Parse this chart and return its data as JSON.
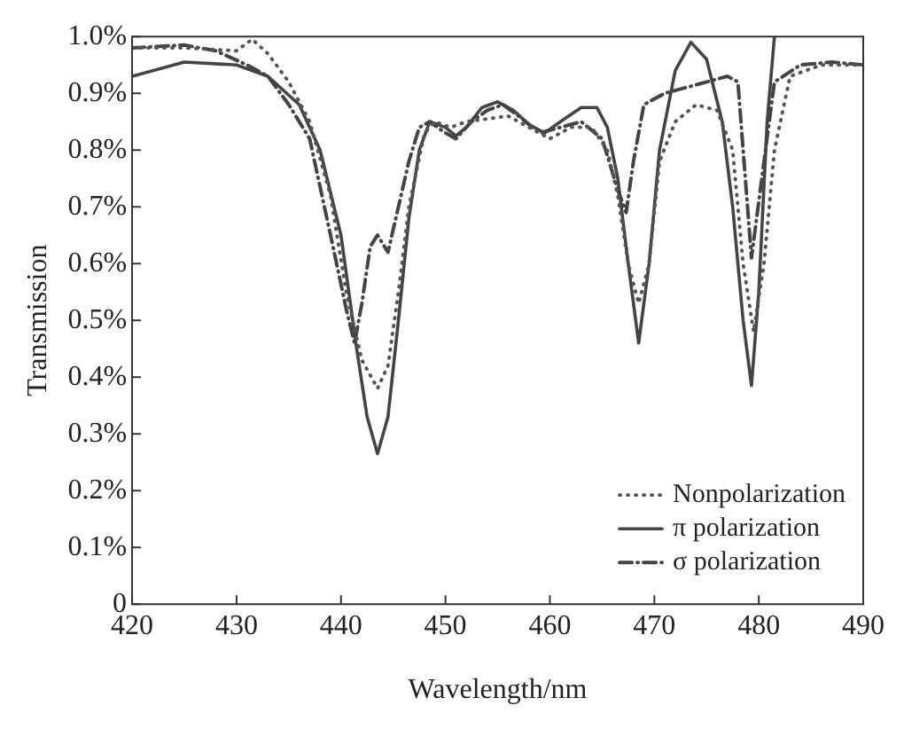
{
  "chart_data": {
    "type": "line",
    "xlabel": "Wavelength/nm",
    "ylabel": "Transmission",
    "xlim": [
      420,
      490
    ],
    "xticks": [
      420,
      430,
      440,
      450,
      460,
      470,
      480,
      490
    ],
    "ylim": [
      0,
      1.0
    ],
    "yticks": [
      {
        "value": 0,
        "label": "0"
      },
      {
        "value": 0.1,
        "label": "0.1%"
      },
      {
        "value": 0.2,
        "label": "0.2%"
      },
      {
        "value": 0.3,
        "label": "0.3%"
      },
      {
        "value": 0.4,
        "label": "0.4%"
      },
      {
        "value": 0.5,
        "label": "0.5%"
      },
      {
        "value": 0.6,
        "label": "0.6%"
      },
      {
        "value": 0.7,
        "label": "0.7%"
      },
      {
        "value": 0.8,
        "label": "0.8%"
      },
      {
        "value": 0.9,
        "label": "0.9%"
      },
      {
        "value": 1.0,
        "label": "1.0%"
      }
    ],
    "grid": false,
    "legend": "bottom right",
    "marker": "none",
    "series": [
      {
        "name": "Nonpolarization",
        "color": "#555555",
        "line_style": "dotted",
        "x": [
          420,
          425,
          430,
          431.5,
          433,
          435,
          437,
          439,
          440.5,
          442,
          443.5,
          444.5,
          445.5,
          446.5,
          448,
          449,
          450.5,
          452,
          454,
          456,
          458,
          460,
          462,
          464,
          465.5,
          466.5,
          467.5,
          468.5,
          469.5,
          470.5,
          472,
          474,
          476,
          477.5,
          478.5,
          479.5,
          480.5,
          481.5,
          483,
          486,
          490
        ],
        "values": [
          0.98,
          0.98,
          0.975,
          0.995,
          0.97,
          0.92,
          0.85,
          0.72,
          0.55,
          0.43,
          0.38,
          0.42,
          0.55,
          0.7,
          0.83,
          0.85,
          0.84,
          0.85,
          0.855,
          0.86,
          0.84,
          0.82,
          0.84,
          0.84,
          0.8,
          0.72,
          0.6,
          0.53,
          0.6,
          0.78,
          0.85,
          0.88,
          0.87,
          0.8,
          0.6,
          0.48,
          0.6,
          0.8,
          0.93,
          0.95,
          0.95
        ]
      },
      {
        "name": "π polarization",
        "color": "#444444",
        "line_style": "solid",
        "x": [
          420,
          425,
          430,
          433,
          436,
          438,
          440,
          441.5,
          442.5,
          443.5,
          444.5,
          445.5,
          446.5,
          447.5,
          448.5,
          450,
          451,
          452,
          453.5,
          455,
          456.5,
          458,
          459.5,
          461,
          463,
          464.5,
          465.5,
          466.5,
          467.5,
          468.5,
          469.5,
          470.5,
          472,
          473.5,
          475,
          476.5,
          477.5,
          478.5,
          479.3,
          480,
          480.8,
          481.5
        ],
        "values": [
          0.93,
          0.955,
          0.95,
          0.93,
          0.88,
          0.8,
          0.65,
          0.45,
          0.33,
          0.265,
          0.33,
          0.5,
          0.68,
          0.8,
          0.85,
          0.84,
          0.825,
          0.84,
          0.875,
          0.885,
          0.87,
          0.845,
          0.83,
          0.85,
          0.875,
          0.875,
          0.84,
          0.75,
          0.6,
          0.46,
          0.6,
          0.8,
          0.94,
          0.99,
          0.96,
          0.85,
          0.7,
          0.5,
          0.385,
          0.55,
          0.85,
          1.0
        ]
      },
      {
        "name": "σ polarization",
        "color": "#444444",
        "line_style": "dashdot",
        "x": [
          420,
          425,
          428,
          431,
          433,
          435,
          437,
          439,
          440.5,
          441.3,
          442,
          442.8,
          443.5,
          444.5,
          445.5,
          446.5,
          447.5,
          448.5,
          450,
          451,
          452.5,
          454,
          455.5,
          457,
          459,
          461,
          463,
          465,
          466.5,
          467.3,
          468,
          469,
          471,
          474,
          477,
          478,
          479.3,
          480.5,
          481.5,
          484,
          487,
          490
        ],
        "values": [
          0.98,
          0.985,
          0.975,
          0.95,
          0.93,
          0.88,
          0.82,
          0.65,
          0.52,
          0.46,
          0.53,
          0.63,
          0.65,
          0.62,
          0.7,
          0.78,
          0.84,
          0.85,
          0.83,
          0.82,
          0.85,
          0.87,
          0.88,
          0.86,
          0.83,
          0.84,
          0.85,
          0.82,
          0.73,
          0.69,
          0.78,
          0.88,
          0.9,
          0.915,
          0.93,
          0.92,
          0.61,
          0.78,
          0.92,
          0.95,
          0.955,
          0.95
        ]
      }
    ]
  }
}
